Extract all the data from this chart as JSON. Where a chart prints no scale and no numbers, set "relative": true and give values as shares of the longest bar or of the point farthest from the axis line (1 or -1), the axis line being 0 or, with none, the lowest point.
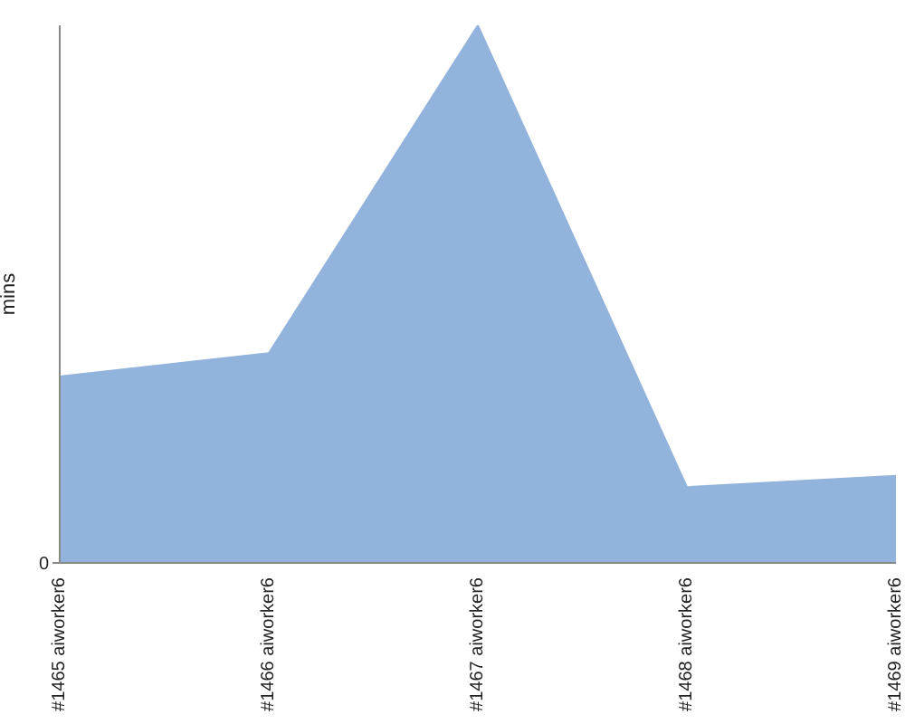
{
  "chart_data": {
    "type": "area",
    "ylabel": "mins",
    "categories": [
      "#1465 aiworker6",
      "#1466 aiworker6",
      "#1467 aiworker6",
      "#1468 aiworker6",
      "#1469 aiworker6"
    ],
    "values": [
      0.347,
      0.39,
      1,
      0.141,
      0.162
    ],
    "color": "#92b3db",
    "relative": true,
    "annotations": [
      "0"
    ]
  }
}
